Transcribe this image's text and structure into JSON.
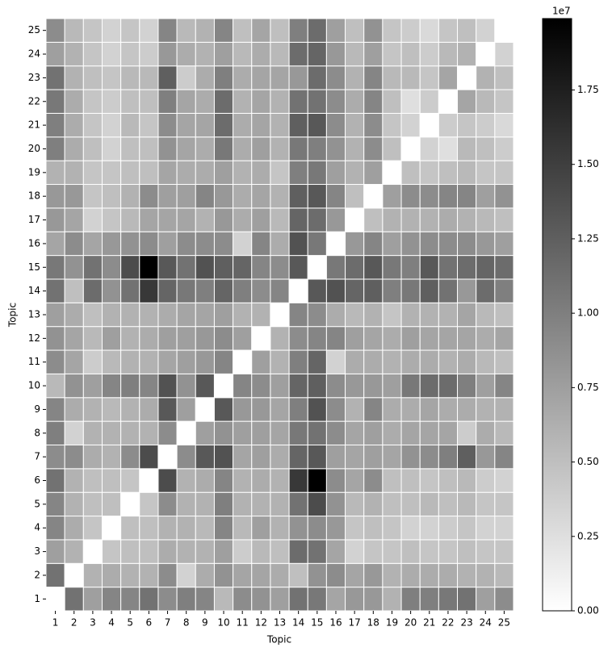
{
  "chart_data": {
    "type": "heatmap",
    "xlabel": "Topic",
    "ylabel": "Topic",
    "x_categories": [
      "1",
      "2",
      "3",
      "4",
      "5",
      "6",
      "7",
      "8",
      "9",
      "10",
      "11",
      "12",
      "13",
      "14",
      "15",
      "16",
      "17",
      "18",
      "19",
      "20",
      "21",
      "22",
      "23",
      "24",
      "25"
    ],
    "y_categories": [
      "1",
      "2",
      "3",
      "4",
      "5",
      "6",
      "7",
      "8",
      "9",
      "10",
      "11",
      "12",
      "13",
      "14",
      "15",
      "16",
      "17",
      "18",
      "19",
      "20",
      "21",
      "22",
      "23",
      "24",
      "25"
    ],
    "colormap": "gray_r",
    "cell_edge_color": "#ffffff",
    "values": [
      [
        0,
        1.1,
        0.75,
        0.95,
        0.95,
        1.1,
        0.9,
        1.0,
        0.95,
        0.55,
        0.9,
        0.85,
        0.75,
        1.1,
        1.05,
        0.7,
        0.8,
        0.8,
        0.6,
        1.0,
        1.0,
        1.05,
        1.1,
        0.75,
        0.9
      ],
      [
        1.1,
        0,
        0.6,
        0.65,
        0.6,
        0.6,
        0.9,
        0.35,
        0.65,
        0.85,
        0.7,
        0.7,
        0.65,
        0.5,
        0.85,
        0.9,
        0.7,
        0.8,
        0.6,
        0.65,
        0.65,
        0.65,
        0.6,
        0.6,
        0.55
      ],
      [
        0.75,
        0.6,
        0,
        0.45,
        0.5,
        0.5,
        0.65,
        0.6,
        0.6,
        0.75,
        0.4,
        0.55,
        0.5,
        1.15,
        1.1,
        0.7,
        0.35,
        0.45,
        0.45,
        0.5,
        0.45,
        0.45,
        0.5,
        0.45,
        0.45
      ],
      [
        0.95,
        0.65,
        0.45,
        0,
        0.5,
        0.5,
        0.6,
        0.6,
        0.55,
        0.95,
        0.55,
        0.75,
        0.6,
        0.85,
        0.9,
        0.8,
        0.45,
        0.5,
        0.45,
        0.35,
        0.35,
        0.4,
        0.45,
        0.35,
        0.35
      ],
      [
        0.95,
        0.6,
        0.5,
        0.5,
        0,
        0.45,
        0.9,
        0.6,
        0.6,
        1.0,
        0.6,
        0.6,
        0.6,
        1.1,
        1.4,
        0.85,
        0.55,
        0.6,
        0.5,
        0.5,
        0.55,
        0.5,
        0.55,
        0.45,
        0.45
      ],
      [
        1.1,
        0.6,
        0.5,
        0.5,
        0.45,
        0,
        1.4,
        0.6,
        0.65,
        0.95,
        0.6,
        0.65,
        0.6,
        1.55,
        1.99,
        0.9,
        0.7,
        0.9,
        0.5,
        0.5,
        0.45,
        0.5,
        0.55,
        0.4,
        0.35
      ],
      [
        0.9,
        0.9,
        0.65,
        0.6,
        0.9,
        1.4,
        0,
        0.9,
        1.3,
        1.35,
        0.7,
        0.75,
        0.65,
        1.2,
        1.3,
        0.75,
        0.7,
        0.75,
        0.7,
        0.85,
        0.9,
        1.0,
        1.25,
        0.8,
        0.95
      ],
      [
        1.0,
        0.35,
        0.6,
        0.6,
        0.6,
        0.6,
        0.9,
        0,
        0.75,
        0.85,
        0.75,
        0.75,
        0.7,
        1.05,
        1.1,
        0.9,
        0.7,
        0.75,
        0.65,
        0.7,
        0.7,
        0.7,
        0.4,
        0.65,
        0.55
      ],
      [
        0.95,
        0.65,
        0.6,
        0.55,
        0.6,
        0.65,
        1.3,
        0.75,
        0,
        1.3,
        0.8,
        0.8,
        0.7,
        1.0,
        1.35,
        0.9,
        0.6,
        0.95,
        0.65,
        0.65,
        0.7,
        0.65,
        0.65,
        0.6,
        0.6
      ],
      [
        0.55,
        0.85,
        0.75,
        0.95,
        1.0,
        0.95,
        1.35,
        0.85,
        1.3,
        0,
        0.95,
        0.9,
        0.75,
        1.2,
        1.25,
        0.9,
        0.8,
        0.8,
        0.75,
        1.05,
        1.15,
        1.15,
        1.0,
        0.75,
        0.95
      ],
      [
        0.9,
        0.7,
        0.4,
        0.55,
        0.6,
        0.6,
        0.7,
        0.75,
        0.8,
        0.95,
        0,
        0.75,
        0.6,
        1.0,
        1.2,
        0.35,
        0.65,
        0.65,
        0.6,
        0.65,
        0.65,
        0.6,
        0.65,
        0.55,
        0.5
      ],
      [
        0.85,
        0.7,
        0.55,
        0.75,
        0.6,
        0.65,
        0.75,
        0.75,
        0.8,
        0.9,
        0.75,
        0,
        0.6,
        0.9,
        0.95,
        0.95,
        0.75,
        0.7,
        0.65,
        0.75,
        0.7,
        0.7,
        0.7,
        0.65,
        0.7
      ],
      [
        0.75,
        0.65,
        0.5,
        0.6,
        0.6,
        0.6,
        0.65,
        0.7,
        0.7,
        0.75,
        0.6,
        0.6,
        0,
        0.95,
        0.9,
        0.65,
        0.55,
        0.6,
        0.45,
        0.6,
        0.6,
        0.6,
        0.7,
        0.55,
        0.5
      ],
      [
        1.1,
        0.5,
        1.15,
        0.85,
        1.1,
        1.55,
        1.2,
        1.05,
        1.0,
        1.2,
        1.0,
        0.9,
        0.95,
        0,
        1.3,
        1.35,
        1.2,
        1.25,
        1.0,
        1.05,
        1.25,
        1.1,
        0.8,
        1.15,
        1.0
      ],
      [
        1.05,
        0.85,
        1.1,
        0.9,
        1.4,
        1.99,
        1.3,
        1.1,
        1.35,
        1.25,
        1.2,
        0.95,
        0.9,
        1.3,
        0,
        1.05,
        1.15,
        1.3,
        1.05,
        1.0,
        1.3,
        1.1,
        1.15,
        1.2,
        1.15
      ],
      [
        0.7,
        0.9,
        0.7,
        0.8,
        0.85,
        0.9,
        0.75,
        0.9,
        0.9,
        0.9,
        0.35,
        0.95,
        0.65,
        1.35,
        1.05,
        0,
        0.8,
        0.95,
        0.75,
        0.85,
        0.9,
        0.9,
        0.9,
        0.8,
        0.75
      ],
      [
        0.8,
        0.7,
        0.35,
        0.45,
        0.55,
        0.7,
        0.7,
        0.7,
        0.6,
        0.8,
        0.65,
        0.75,
        0.55,
        1.2,
        1.15,
        0.8,
        0,
        0.5,
        0.6,
        0.6,
        0.6,
        0.65,
        0.6,
        0.55,
        0.5
      ],
      [
        0.8,
        0.8,
        0.45,
        0.5,
        0.6,
        0.9,
        0.75,
        0.75,
        0.95,
        0.8,
        0.65,
        0.7,
        0.6,
        1.25,
        1.3,
        0.95,
        0.5,
        0,
        0.75,
        0.9,
        0.9,
        0.95,
        0.95,
        0.75,
        0.85
      ],
      [
        0.6,
        0.6,
        0.45,
        0.45,
        0.5,
        0.5,
        0.7,
        0.65,
        0.65,
        0.75,
        0.6,
        0.65,
        0.45,
        1.0,
        1.05,
        0.75,
        0.6,
        0.75,
        0,
        0.5,
        0.45,
        0.5,
        0.55,
        0.45,
        0.45
      ],
      [
        1.0,
        0.65,
        0.5,
        0.35,
        0.5,
        0.5,
        0.85,
        0.7,
        0.65,
        1.05,
        0.65,
        0.75,
        0.6,
        1.05,
        1.0,
        0.85,
        0.6,
        0.9,
        0.5,
        0,
        0.35,
        0.25,
        0.55,
        0.5,
        0.4
      ],
      [
        1.0,
        0.65,
        0.45,
        0.35,
        0.55,
        0.45,
        0.9,
        0.7,
        0.7,
        1.15,
        0.65,
        0.7,
        0.6,
        1.25,
        1.3,
        0.9,
        0.6,
        0.9,
        0.45,
        0.35,
        0,
        0.4,
        0.45,
        0.4,
        0.3
      ],
      [
        1.05,
        0.65,
        0.45,
        0.4,
        0.5,
        0.5,
        1.0,
        0.7,
        0.65,
        1.15,
        0.6,
        0.7,
        0.6,
        1.1,
        1.1,
        0.9,
        0.65,
        0.95,
        0.5,
        0.25,
        0.4,
        0,
        0.7,
        0.55,
        0.45
      ],
      [
        1.1,
        0.6,
        0.5,
        0.45,
        0.55,
        0.55,
        1.25,
        0.4,
        0.65,
        1.0,
        0.65,
        0.7,
        0.7,
        0.8,
        1.15,
        0.9,
        0.6,
        0.95,
        0.55,
        0.55,
        0.45,
        0.7,
        0,
        0.6,
        0.5
      ],
      [
        0.75,
        0.6,
        0.45,
        0.35,
        0.45,
        0.4,
        0.8,
        0.65,
        0.6,
        0.75,
        0.55,
        0.65,
        0.55,
        1.15,
        1.2,
        0.8,
        0.55,
        0.75,
        0.45,
        0.5,
        0.4,
        0.55,
        0.6,
        0,
        0.35
      ],
      [
        0.9,
        0.55,
        0.45,
        0.35,
        0.45,
        0.35,
        0.95,
        0.55,
        0.6,
        0.95,
        0.5,
        0.7,
        0.5,
        1.0,
        1.15,
        0.75,
        0.5,
        0.85,
        0.45,
        0.4,
        0.3,
        0.45,
        0.5,
        0.35,
        0
      ]
    ],
    "colorbar": {
      "clim": [
        0,
        1.99
      ],
      "offset_label": "1e7",
      "ticks": [
        {
          "value": 0,
          "label": "0.00"
        },
        0.25,
        {
          "value": 0.5,
          "label": "0.50"
        },
        0.75,
        {
          "value": 1,
          "label": "1.00"
        },
        1.25,
        {
          "value": 1.5,
          "label": "1.50"
        },
        1.75
      ]
    }
  }
}
